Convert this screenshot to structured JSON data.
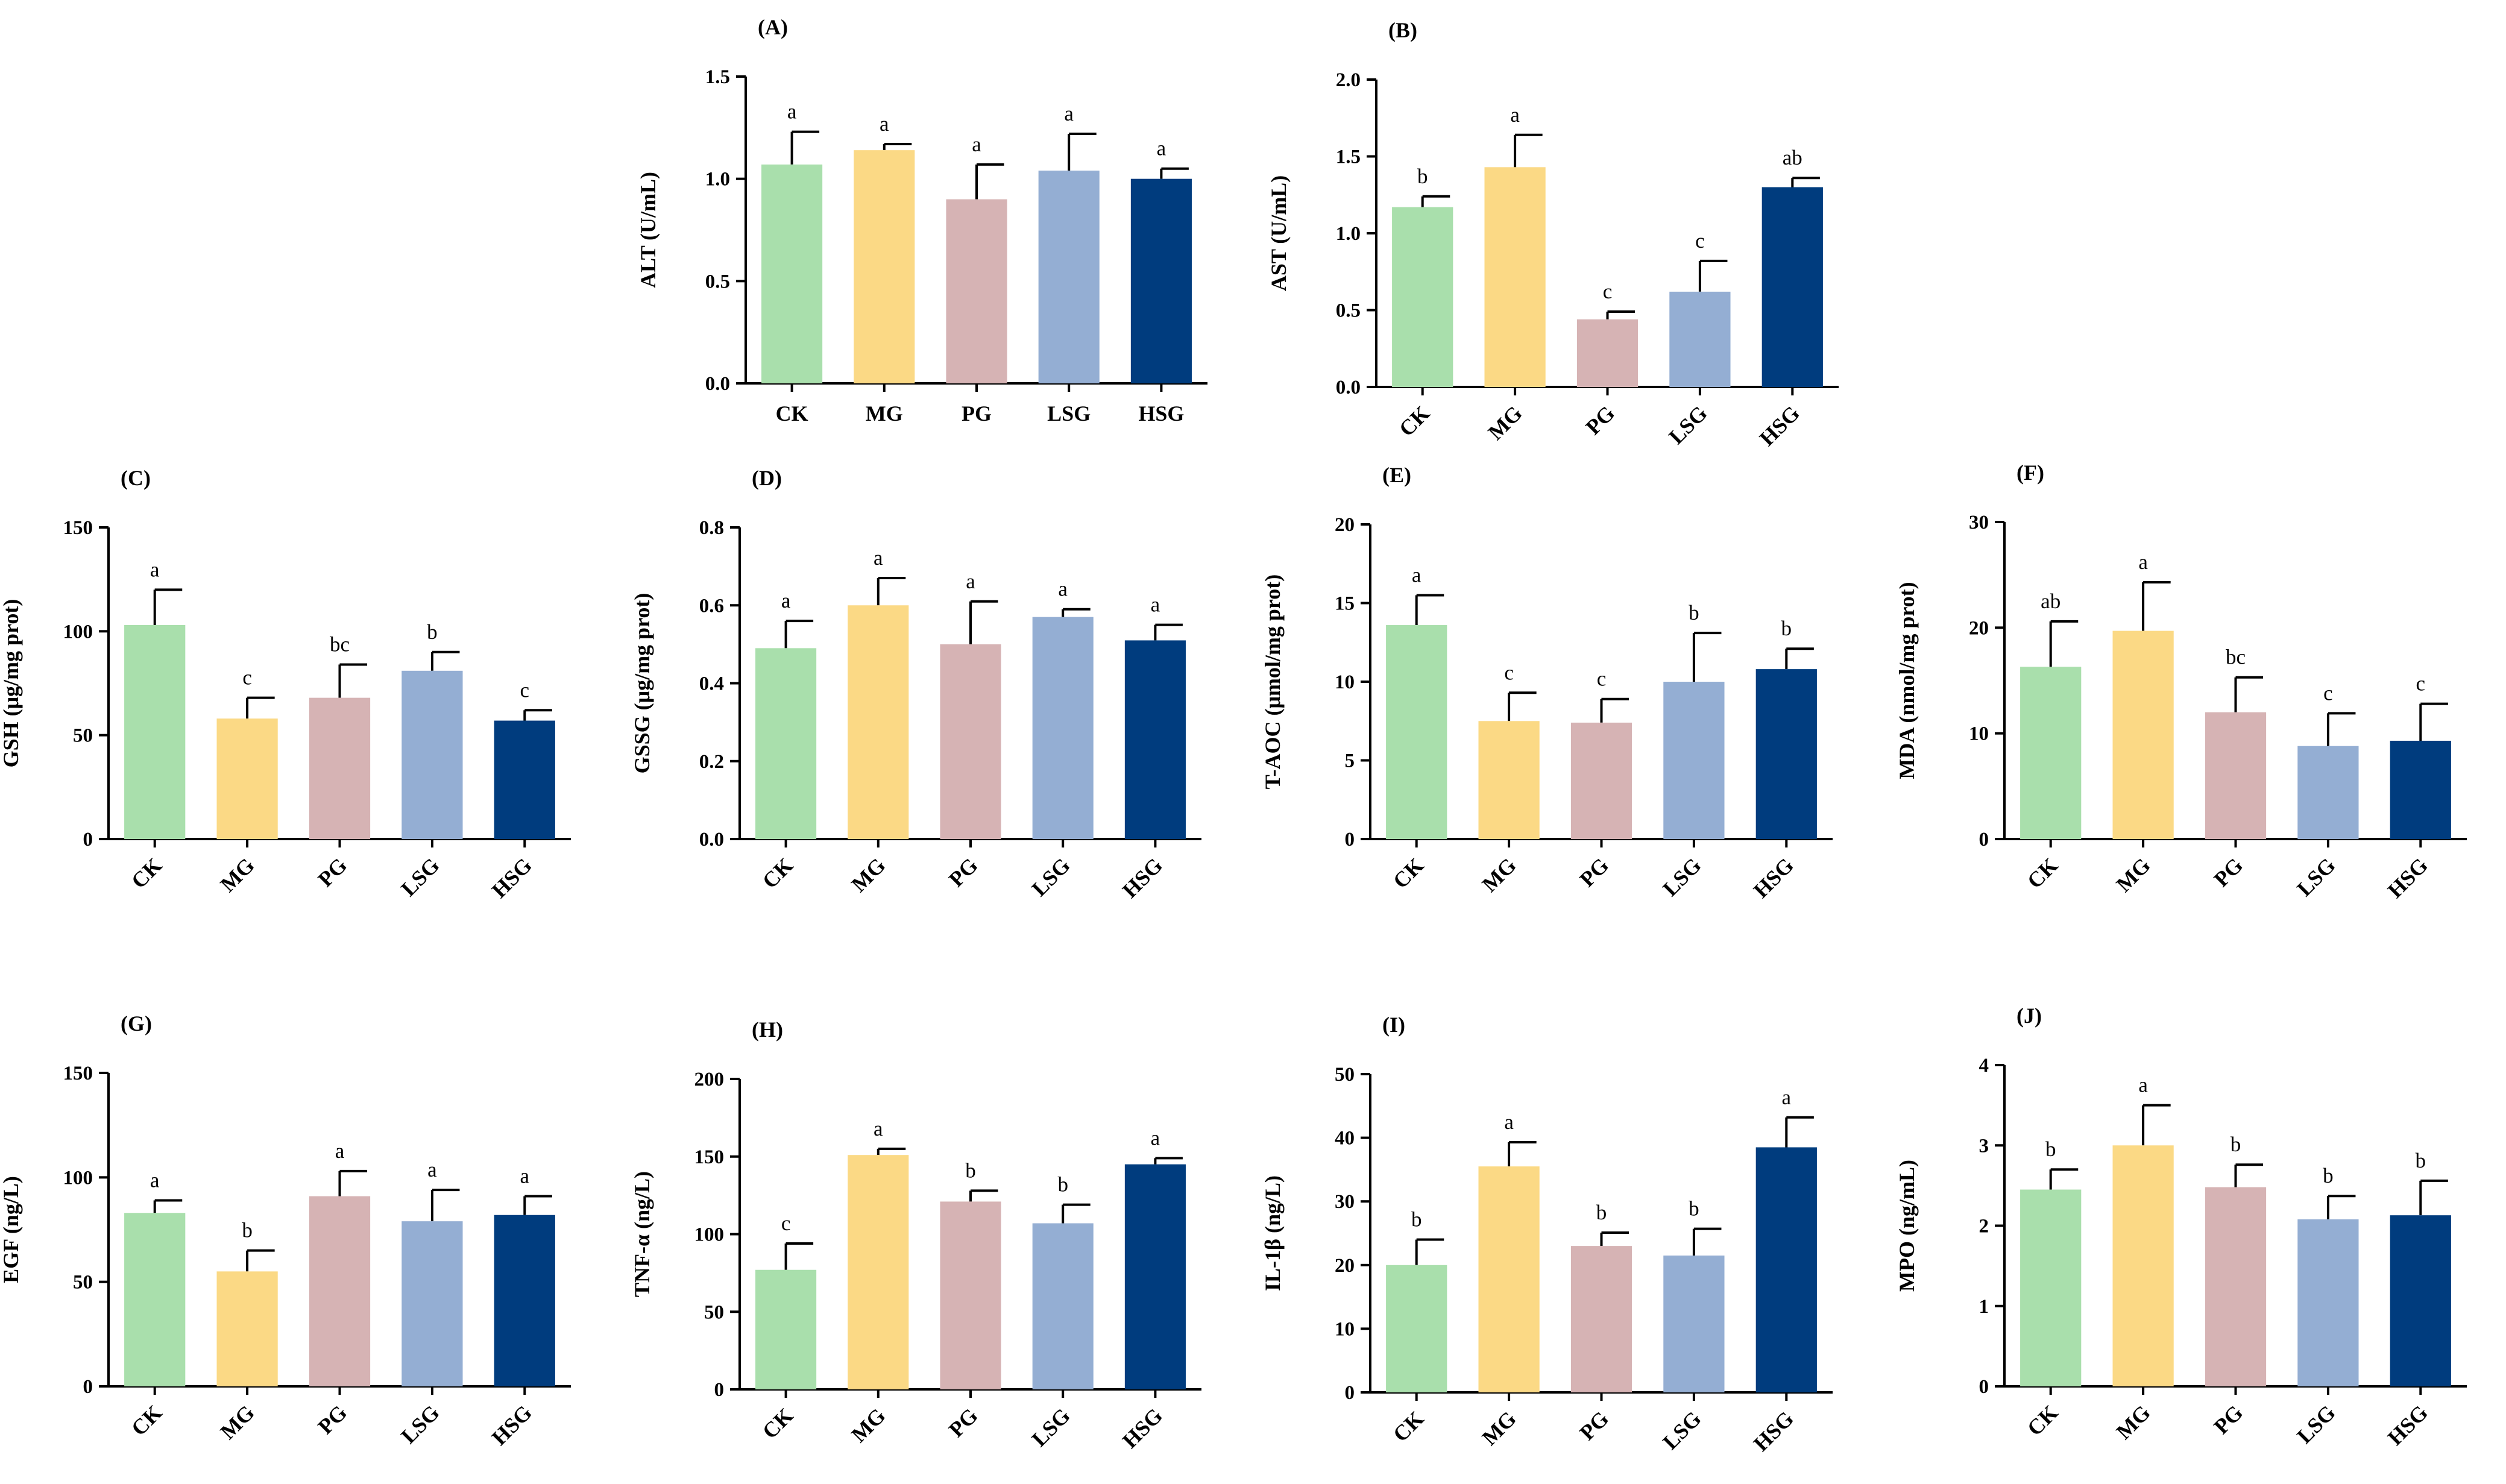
{
  "chart_data": [
    {
      "type": "bar",
      "panel": "(A)",
      "ylabel": "ALT (U/mL)",
      "categories": [
        "CK",
        "MG",
        "PG",
        "LSG",
        "HSG"
      ],
      "values": [
        1.07,
        1.14,
        0.9,
        1.04,
        1.0
      ],
      "errors": [
        0.16,
        0.03,
        0.17,
        0.18,
        0.05
      ],
      "letters": [
        "a",
        "a",
        "a",
        "a",
        "a"
      ],
      "ylim": [
        0,
        1.5
      ],
      "yticks": [
        "0.0",
        "0.5",
        "1.0",
        "1.5"
      ],
      "rotate_categories": false
    },
    {
      "type": "bar",
      "panel": "(B)",
      "ylabel": "AST (U/mL)",
      "categories": [
        "CK",
        "MG",
        "PG",
        "LSG",
        "HSG"
      ],
      "values": [
        1.17,
        1.43,
        0.44,
        0.62,
        1.3
      ],
      "errors": [
        0.07,
        0.21,
        0.05,
        0.2,
        0.06
      ],
      "letters": [
        "b",
        "a",
        "c",
        "c",
        "ab"
      ],
      "ylim": [
        0,
        2.0
      ],
      "yticks": [
        "0.0",
        "0.5",
        "1.0",
        "1.5",
        "2.0"
      ],
      "rotate_categories": true
    },
    {
      "type": "bar",
      "panel": "(C)",
      "ylabel": "GSH (μg/mg prot)",
      "categories": [
        "CK",
        "MG",
        "PG",
        "LSG",
        "HSG"
      ],
      "values": [
        103,
        58,
        68,
        81,
        57
      ],
      "errors": [
        17,
        10,
        16,
        9,
        5
      ],
      "letters": [
        "a",
        "c",
        "bc",
        "b",
        "c"
      ],
      "ylim": [
        0,
        150
      ],
      "yticks": [
        "0",
        "50",
        "100",
        "150"
      ],
      "rotate_categories": true
    },
    {
      "type": "bar",
      "panel": "(D)",
      "ylabel": "GSSG (μg/mg prot)",
      "categories": [
        "CK",
        "MG",
        "PG",
        "LSG",
        "HSG"
      ],
      "values": [
        0.49,
        0.6,
        0.5,
        0.57,
        0.51
      ],
      "errors": [
        0.07,
        0.07,
        0.11,
        0.02,
        0.04
      ],
      "letters": [
        "a",
        "a",
        "a",
        "a",
        "a"
      ],
      "ylim": [
        0,
        0.8
      ],
      "yticks": [
        "0.0",
        "0.2",
        "0.4",
        "0.6",
        "0.8"
      ],
      "rotate_categories": true
    },
    {
      "type": "bar",
      "panel": "(E)",
      "ylabel": "T-AOC (μmol/mg prot)",
      "categories": [
        "CK",
        "MG",
        "PG",
        "LSG",
        "HSG"
      ],
      "values": [
        13.6,
        7.5,
        7.4,
        10.0,
        10.8
      ],
      "errors": [
        1.9,
        1.8,
        1.5,
        3.1,
        1.3
      ],
      "letters": [
        "a",
        "c",
        "c",
        "b",
        "b"
      ],
      "ylim": [
        0,
        20
      ],
      "yticks": [
        "0",
        "5",
        "10",
        "15",
        "20"
      ],
      "rotate_categories": true
    },
    {
      "type": "bar",
      "panel": "(F)",
      "ylabel": "MDA (nmol/mg prot)",
      "categories": [
        "CK",
        "MG",
        "PG",
        "LSG",
        "HSG"
      ],
      "values": [
        16.3,
        19.7,
        12.0,
        8.8,
        9.3
      ],
      "errors": [
        4.3,
        4.6,
        3.3,
        3.1,
        3.5
      ],
      "letters": [
        "ab",
        "a",
        "bc",
        "c",
        "c"
      ],
      "ylim": [
        0,
        30
      ],
      "yticks": [
        "0",
        "10",
        "20",
        "30"
      ],
      "rotate_categories": true
    },
    {
      "type": "bar",
      "panel": "(G)",
      "ylabel": "EGF (ng/L)",
      "categories": [
        "CK",
        "MG",
        "PG",
        "LSG",
        "HSG"
      ],
      "values": [
        83,
        55,
        91,
        79,
        82
      ],
      "errors": [
        6,
        10,
        12,
        15,
        9
      ],
      "letters": [
        "a",
        "b",
        "a",
        "a",
        "a"
      ],
      "ylim": [
        0,
        150
      ],
      "yticks": [
        "0",
        "50",
        "100",
        "150"
      ],
      "rotate_categories": true
    },
    {
      "type": "bar",
      "panel": "(H)",
      "ylabel": "TNF-α (ng/L)",
      "categories": [
        "CK",
        "MG",
        "PG",
        "LSG",
        "HSG"
      ],
      "values": [
        77,
        151,
        121,
        107,
        145
      ],
      "errors": [
        17,
        4,
        7,
        12,
        4
      ],
      "letters": [
        "c",
        "a",
        "b",
        "b",
        "a"
      ],
      "ylim": [
        0,
        200
      ],
      "yticks": [
        "0",
        "50",
        "100",
        "150",
        "200"
      ],
      "rotate_categories": true
    },
    {
      "type": "bar",
      "panel": "(I)",
      "ylabel": "IL-1β (ng/L)",
      "categories": [
        "CK",
        "MG",
        "PG",
        "LSG",
        "HSG"
      ],
      "values": [
        20.0,
        35.5,
        23.0,
        21.5,
        38.5
      ],
      "errors": [
        4.0,
        3.8,
        2.1,
        4.2,
        4.7
      ],
      "letters": [
        "b",
        "a",
        "b",
        "b",
        "a"
      ],
      "ylim": [
        0,
        50
      ],
      "yticks": [
        "0",
        "10",
        "20",
        "30",
        "40",
        "50"
      ],
      "rotate_categories": true
    },
    {
      "type": "bar",
      "panel": "(J)",
      "ylabel": "MPO (ng/mL)",
      "categories": [
        "CK",
        "MG",
        "PG",
        "LSG",
        "HSG"
      ],
      "values": [
        2.45,
        3.0,
        2.48,
        2.08,
        2.13
      ],
      "errors": [
        0.25,
        0.5,
        0.28,
        0.29,
        0.43
      ],
      "letters": [
        "b",
        "a",
        "b",
        "b",
        "b"
      ],
      "ylim": [
        0,
        4
      ],
      "yticks": [
        "0",
        "1",
        "2",
        "3",
        "4"
      ],
      "rotate_categories": true
    }
  ],
  "colors": [
    "#a9dfac",
    "#fbd985",
    "#d6b3b4",
    "#94aed3",
    "#003c7e"
  ]
}
